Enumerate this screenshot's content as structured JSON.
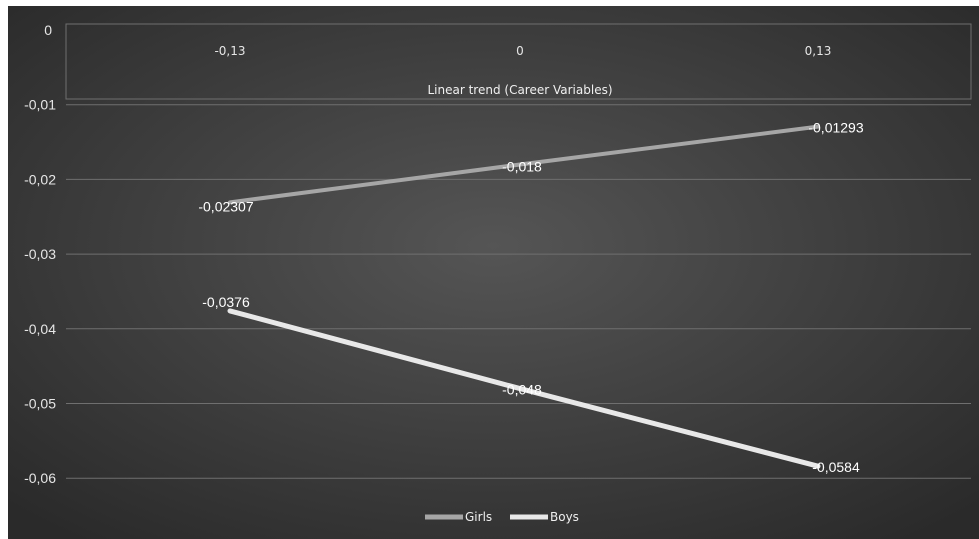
{
  "chart_data": {
    "type": "line",
    "xlabel": "Linear trend (Career Variables)",
    "x": [
      "-0,13",
      "0",
      "0,13"
    ],
    "ylim": [
      -0.065,
      0
    ],
    "y_ticks": [
      "0",
      "-0,01",
      "-0,02",
      "-0,03",
      "-0,04",
      "-0,05",
      "-0,06"
    ],
    "y_tick_values": [
      0,
      -0.01,
      -0.02,
      -0.03,
      -0.04,
      -0.05,
      -0.06
    ],
    "grid": true,
    "legend_position": "bottom",
    "series": [
      {
        "name": "Girls",
        "values": [
          -0.02307,
          -0.018,
          -0.01293
        ],
        "labels": [
          "-0,02307",
          "-0,018",
          "-0,01293"
        ]
      },
      {
        "name": "Boys",
        "values": [
          -0.0376,
          -0.048,
          -0.0584
        ],
        "labels": [
          "-0,0376",
          "-0,048",
          "-0,0584"
        ]
      }
    ],
    "colors": {
      "background_outer": "#2a2a2a",
      "background_inner": "#555555",
      "grid": "#6f6f6f",
      "girls": "#a6a6a6",
      "boys": "#e8e8e8"
    }
  }
}
